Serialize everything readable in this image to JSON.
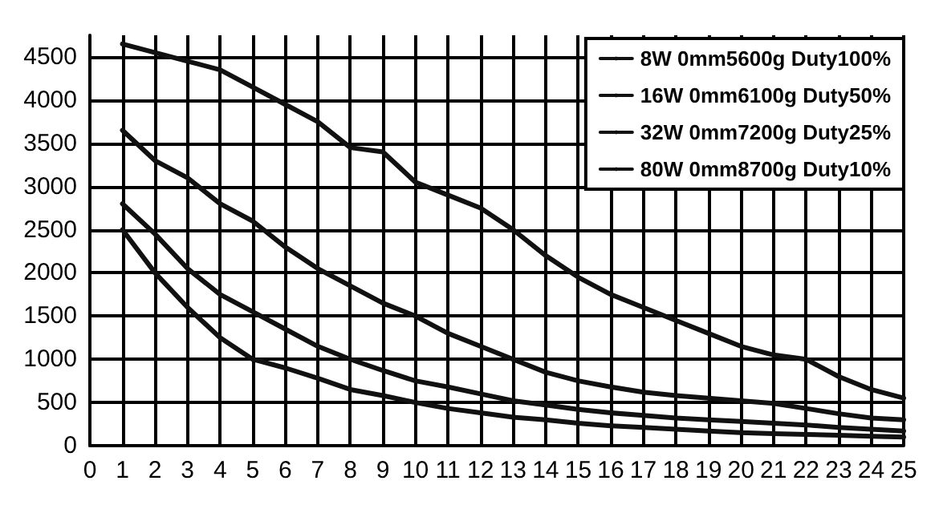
{
  "chart_data": {
    "type": "line",
    "x": [
      1,
      2,
      3,
      4,
      5,
      6,
      7,
      8,
      9,
      10,
      11,
      12,
      13,
      14,
      15,
      16,
      17,
      18,
      19,
      20,
      21,
      22,
      23,
      24,
      25
    ],
    "series": [
      {
        "name": "8W 0mm5600g Duty100%",
        "color": "#111111",
        "values": [
          2500,
          2000,
          1600,
          1250,
          1000,
          900,
          780,
          650,
          580,
          500,
          430,
          380,
          330,
          300,
          260,
          230,
          210,
          190,
          170,
          150,
          140,
          130,
          120,
          110,
          100
        ]
      },
      {
        "name": "16W 0mm6100g Duty50%",
        "color": "#111111",
        "values": [
          2800,
          2450,
          2050,
          1750,
          1550,
          1350,
          1150,
          1000,
          870,
          750,
          680,
          600,
          520,
          470,
          420,
          380,
          350,
          320,
          300,
          280,
          260,
          240,
          210,
          190,
          170
        ]
      },
      {
        "name": "32W 0mm7200g Duty25%",
        "color": "#111111",
        "values": [
          3650,
          3300,
          3100,
          2800,
          2600,
          2300,
          2050,
          1850,
          1650,
          1500,
          1300,
          1150,
          1000,
          850,
          750,
          680,
          620,
          580,
          550,
          520,
          490,
          430,
          370,
          320,
          300
        ]
      },
      {
        "name": "80W 0mm8700g Duty10%",
        "color": "#111111",
        "values": [
          4650,
          4550,
          4450,
          4350,
          4150,
          3950,
          3750,
          3450,
          3400,
          3050,
          2900,
          2750,
          2500,
          2200,
          1950,
          1750,
          1600,
          1450,
          1300,
          1150,
          1050,
          1000,
          800,
          650,
          550
        ]
      }
    ],
    "xlim": [
      0,
      25
    ],
    "xticks": [
      0,
      1,
      2,
      3,
      4,
      5,
      6,
      7,
      8,
      9,
      10,
      11,
      12,
      13,
      14,
      15,
      16,
      17,
      18,
      19,
      20,
      21,
      22,
      23,
      24,
      25
    ],
    "ylim": [
      0,
      4750
    ],
    "yticks": [
      0,
      500,
      1000,
      1500,
      2000,
      2500,
      3000,
      3500,
      4000,
      4500
    ],
    "grid": true,
    "legend": "top right",
    "marker": "none",
    "line_style": "solid"
  }
}
